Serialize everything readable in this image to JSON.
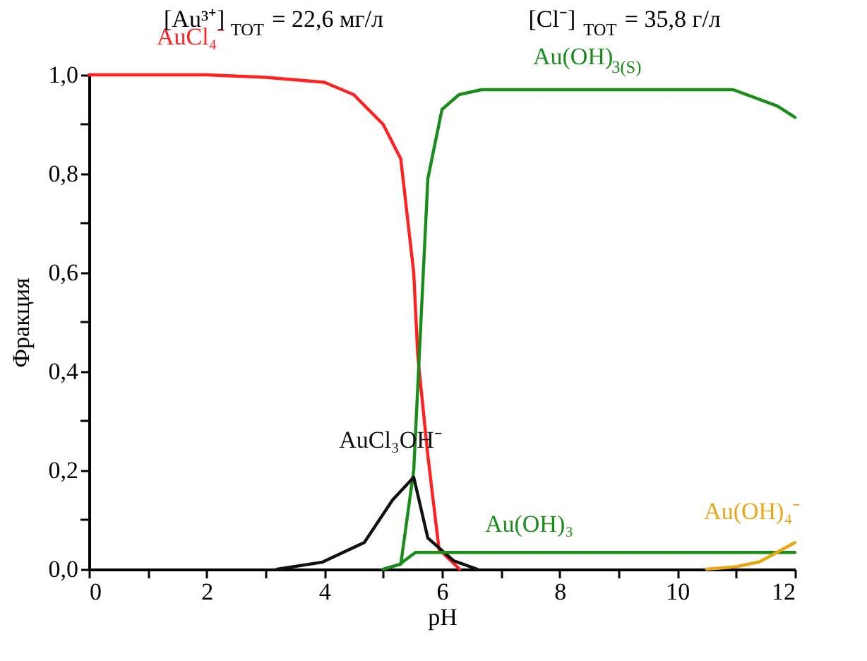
{
  "chart_data": {
    "type": "line",
    "xlabel": "pH",
    "ylabel": "Фракция",
    "annotations": [
      "[Au³⁺]$_{TOT}$ = 22,6 мг/л",
      "[Cl⁻]$_{TOT}$ = 35,8 г/л"
    ],
    "xlim": [
      0,
      12
    ],
    "ylim": [
      0,
      1.0
    ],
    "xticks": [
      0,
      {
        "value": 1,
        "label": null
      },
      2,
      {
        "value": 3,
        "label": null
      },
      4,
      {
        "value": 5,
        "label": null
      },
      6,
      {
        "value": 7,
        "label": null
      },
      8,
      {
        "value": 9,
        "label": null
      },
      10,
      {
        "value": 11,
        "label": null
      },
      12
    ],
    "yticks": [
      {
        "value": 0,
        "label": "0,0"
      },
      {
        "value": 0.1,
        "label": null
      },
      {
        "value": 0.2,
        "label": "0,2"
      },
      {
        "value": 0.3,
        "label": null
      },
      {
        "value": 0.4,
        "label": "0,4"
      },
      {
        "value": 0.5,
        "label": null
      },
      {
        "value": 0.6,
        "label": "0,6"
      },
      {
        "value": 0.7,
        "label": null
      },
      {
        "value": 0.8,
        "label": "0,8"
      },
      {
        "value": 0.9,
        "label": null
      },
      {
        "value": 1.0,
        "label": "1,0"
      }
    ],
    "grid": false,
    "marker": "none",
    "line_style": "solid",
    "series": [
      {
        "name": "AuCl₄⁻",
        "color": "#ff2020",
        "x": [
          0,
          2,
          3,
          4,
          4.5,
          5,
          5.3,
          5.52,
          5.59,
          5.76,
          5.95,
          6.3
        ],
        "values": [
          1.0,
          1.0,
          0.995,
          0.985,
          0.96,
          0.9,
          0.83,
          0.6,
          0.43,
          0.23,
          0.04,
          0
        ]
      },
      {
        "name": "Au(OH)$_{3(S)}$",
        "color": "#1a8c1a",
        "x": [
          5.0,
          5.3,
          5.52,
          5.76,
          6.0,
          6.29,
          6.67,
          8,
          10,
          10.95,
          11.7,
          12
        ],
        "values": [
          0,
          0.01,
          0.2,
          0.79,
          0.93,
          0.96,
          0.97,
          0.97,
          0.97,
          0.97,
          0.937,
          0.914
        ]
      },
      {
        "name": "AuCl₃OH⁻",
        "color": "#111111",
        "x": [
          3.2,
          3.96,
          4.68,
          5.16,
          5.52,
          5.76,
          6.2,
          6.6
        ],
        "values": [
          0,
          0.014,
          0.054,
          0.14,
          0.186,
          0.063,
          0.017,
          0
        ]
      },
      {
        "name": "Au(OH)₃",
        "color": "#1a8c1a",
        "x": [
          5.0,
          5.28,
          5.55,
          12
        ],
        "values": [
          0,
          0.01,
          0.034,
          0.034
        ]
      },
      {
        "name": "Au(OH)₄⁻",
        "color": "#e6a817",
        "x": [
          10.5,
          11.0,
          11.4,
          12.0
        ],
        "values": [
          0,
          0.005,
          0.015,
          0.054
        ]
      }
    ]
  }
}
